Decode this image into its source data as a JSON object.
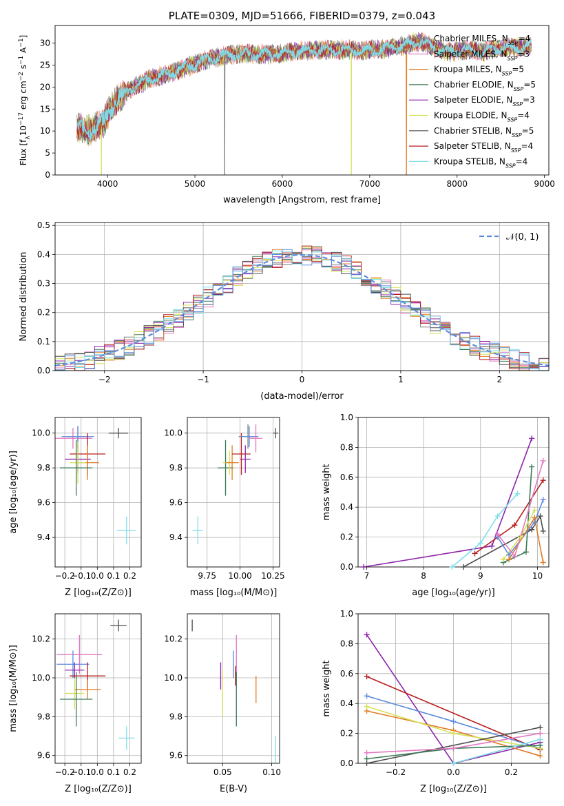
{
  "colors": {
    "chabrier_miles": "#7f7f7f",
    "salpeter_miles": "#e377c2",
    "kroupa_miles": "#e07b24",
    "chabrier_elodie": "#3b7a57",
    "salpeter_elodie": "#8e24aa",
    "kroupa_elodie": "#d4e157",
    "chabrier_stelib": "#4d4d4d",
    "salpeter_stelib": "#b71c1c",
    "kroupa_stelib": "#80deea",
    "blue": "#5b8bdc",
    "normal": "#5b8bdc",
    "grid": "#b0b0b0"
  },
  "chart_data": [
    {
      "id": "spectrum",
      "type": "line",
      "title": "PLATE=0309, MJD=51666, FIBERID=0379, z=0.043",
      "xlabel": "wavelength [Angstrom, rest frame]",
      "ylabel": "Flux [f_λ10^{-17} erg cm^{-2} s^{-1} A^{-1}]",
      "xlim": [
        3400,
        9050
      ],
      "ylim": [
        0,
        34
      ],
      "xticks": [
        4000,
        5000,
        6000,
        7000,
        8000,
        9000
      ],
      "yticks": [
        0,
        5,
        10,
        15,
        20,
        25,
        30
      ],
      "grid": false,
      "legend_position": "right",
      "series": [
        {
          "name": "Chabrier MILES",
          "nssp": "4",
          "color": "chabrier_miles"
        },
        {
          "name": "Salpeter MILES",
          "nssp": "3",
          "color": "salpeter_miles"
        },
        {
          "name": "Kroupa MILES",
          "nssp": "5",
          "color": "kroupa_miles"
        },
        {
          "name": "Chabrier ELODIE",
          "nssp": "5",
          "color": "chabrier_elodie"
        },
        {
          "name": "Salpeter ELODIE",
          "nssp": "3",
          "color": "salpeter_elodie"
        },
        {
          "name": "Kroupa ELODIE",
          "nssp": "4",
          "color": "kroupa_elodie"
        },
        {
          "name": "Chabrier STELIB",
          "nssp": "5",
          "color": "chabrier_stelib"
        },
        {
          "name": "Salpeter STELIB",
          "nssp": "4",
          "color": "salpeter_stelib"
        },
        {
          "name": "Kroupa STELIB",
          "nssp": "4",
          "color": "kroupa_stelib"
        }
      ],
      "continuum": {
        "x": [
          3650,
          3800,
          3950,
          4100,
          4300,
          4500,
          4700,
          4900,
          5100,
          5300,
          5500,
          5700,
          5900,
          6100,
          6300,
          6500,
          6700,
          6900,
          7100,
          7300,
          7500,
          7600,
          7700,
          7900,
          8100,
          8300,
          8500,
          8700,
          8850
        ],
        "y": [
          11,
          10,
          12,
          17,
          20,
          22,
          23,
          24.5,
          26,
          27,
          27.5,
          27.5,
          27.5,
          28,
          28.3,
          28.5,
          28.5,
          28.3,
          28.5,
          29,
          30,
          30.5,
          29,
          28,
          28.5,
          28,
          29,
          29,
          29.5
        ]
      },
      "drops": [
        {
          "wavelength": 3930,
          "series": "kroupa_elodie"
        },
        {
          "wavelength": 5340,
          "series": "chabrier_miles"
        },
        {
          "wavelength": 6790,
          "series": "kroupa_elodie"
        },
        {
          "wavelength": 7420,
          "series": "kroupa_miles"
        }
      ]
    },
    {
      "id": "residuals",
      "type": "histogram",
      "xlabel": "(data-model)/error",
      "ylabel": "Normed distribution",
      "xlim": [
        -2.5,
        2.5
      ],
      "ylim": [
        0,
        0.51
      ],
      "xticks": [
        -2,
        -1,
        0,
        1,
        2
      ],
      "yticks": [
        0.0,
        0.1,
        0.2,
        0.3,
        0.4,
        0.5
      ],
      "grid": true,
      "legend": [
        "𝒩(0, 1)"
      ],
      "legend_position": "top-right",
      "bin_width": 0.1,
      "bin_start": -2.5
    },
    {
      "id": "age_vs_Z",
      "type": "errorbar",
      "xlabel": "Z [log₁₀(Z/Z⊙)]",
      "ylabel": "age  [log₁₀(age/yr)]",
      "xlim": [
        -0.26,
        0.27
      ],
      "ylim": [
        9.23,
        10.09
      ],
      "xticks": [
        -0.2,
        -0.1,
        0.0,
        0.1,
        0.2
      ],
      "xticklabels": [
        "−0.2",
        "−0.1",
        "0.0",
        "0.1",
        "0.2"
      ],
      "yticks": [
        9.4,
        9.6,
        9.8,
        10.0
      ],
      "grid": true,
      "points": [
        {
          "c": "chabrier_miles",
          "x": -0.12,
          "y": 9.98,
          "xe": 0.07,
          "ye": 0.06
        },
        {
          "c": "salpeter_miles",
          "x": -0.15,
          "y": 9.97,
          "xe": 0.12,
          "ye": 0.06
        },
        {
          "c": "blue",
          "x": -0.12,
          "y": 9.98,
          "xe": 0.1,
          "ye": 0.06
        },
        {
          "c": "salpeter_elodie",
          "x": -0.12,
          "y": 9.85,
          "xe": 0.08,
          "ye": 0.08
        },
        {
          "c": "salpeter_stelib",
          "x": -0.06,
          "y": 9.88,
          "xe": 0.11,
          "ye": 0.12
        },
        {
          "c": "kroupa_miles",
          "x": -0.06,
          "y": 9.83,
          "xe": 0.07,
          "ye": 0.1
        },
        {
          "c": "kroupa_elodie",
          "x": -0.12,
          "y": 9.83,
          "xe": 0.05,
          "ye": 0.12
        },
        {
          "c": "chabrier_elodie",
          "x": -0.13,
          "y": 9.8,
          "xe": 0.1,
          "ye": 0.16
        },
        {
          "c": "chabrier_stelib",
          "x": 0.13,
          "y": 10.0,
          "xe": 0.06,
          "ye": 0.03
        },
        {
          "c": "kroupa_stelib",
          "x": 0.18,
          "y": 9.44,
          "xe": 0.06,
          "ye": 0.08
        }
      ]
    },
    {
      "id": "age_vs_mass",
      "type": "errorbar",
      "xlabel": "mass [log₁₀(M/M⊙)]",
      "xlim": [
        9.6,
        10.3
      ],
      "ylim": [
        9.23,
        10.09
      ],
      "xticks": [
        9.75,
        10.0,
        10.25
      ],
      "xticklabels": [
        "9.75",
        "10.00",
        "10.25"
      ],
      "yticks": [
        9.4,
        9.6,
        9.8,
        10.0
      ],
      "grid": true,
      "points": [
        {
          "c": "kroupa_stelib",
          "x": 9.68,
          "y": 9.44,
          "xe": 0.04,
          "ye": 0.08
        },
        {
          "c": "chabrier_elodie",
          "x": 9.89,
          "y": 9.8,
          "xe": 0.06,
          "ye": 0.16
        },
        {
          "c": "kroupa_elodie",
          "x": 9.92,
          "y": 9.83,
          "xe": 0.05,
          "ye": 0.07
        },
        {
          "c": "kroupa_miles",
          "x": 9.94,
          "y": 9.83,
          "xe": 0.05,
          "ye": 0.1
        },
        {
          "c": "salpeter_elodie",
          "x": 10.04,
          "y": 9.85,
          "xe": 0.04,
          "ye": 0.08
        },
        {
          "c": "salpeter_stelib",
          "x": 10.01,
          "y": 9.88,
          "xe": 0.07,
          "ye": 0.12
        },
        {
          "c": "chabrier_miles",
          "x": 10.06,
          "y": 9.98,
          "xe": 0.07,
          "ye": 0.07
        },
        {
          "c": "blue",
          "x": 10.07,
          "y": 9.98,
          "xe": 0.07,
          "ye": 0.06
        },
        {
          "c": "salpeter_miles",
          "x": 10.12,
          "y": 9.97,
          "xe": 0.05,
          "ye": 0.08
        },
        {
          "c": "chabrier_stelib",
          "x": 10.27,
          "y": 10.0,
          "xe": 0.02,
          "ye": 0.03
        }
      ]
    },
    {
      "id": "weight_vs_age",
      "type": "line",
      "xlabel": "age  [log₁₀(age/yr)]",
      "ylabel": "mass weight",
      "xlim": [
        6.85,
        10.2
      ],
      "ylim": [
        0,
        1.0
      ],
      "xticks": [
        7,
        8,
        9,
        10
      ],
      "yticks": [
        0.0,
        0.2,
        0.4,
        0.6,
        0.8,
        1.0
      ],
      "grid": true,
      "series": [
        {
          "c": "salpeter_elodie",
          "x": [
            6.95,
            9.2,
            9.9
          ],
          "y": [
            0.0,
            0.14,
            0.86
          ]
        },
        {
          "c": "kroupa_stelib",
          "x": [
            8.5,
            9.0,
            9.3,
            9.65
          ],
          "y": [
            0.0,
            0.16,
            0.34,
            0.49
          ]
        },
        {
          "c": "salpeter_stelib",
          "x": [
            8.9,
            9.6,
            10.1
          ],
          "y": [
            0.09,
            0.28,
            0.58
          ]
        },
        {
          "c": "chabrier_elodie",
          "x": [
            9.4,
            9.8,
            9.9
          ],
          "y": [
            0.03,
            0.1,
            0.67
          ]
        },
        {
          "c": "chabrier_stelib",
          "x": [
            8.7,
            9.9,
            10.05,
            10.1
          ],
          "y": [
            0.0,
            0.25,
            0.34,
            0.24
          ]
        },
        {
          "c": "blue",
          "x": [
            9.3,
            9.5,
            9.95,
            10.1
          ],
          "y": [
            0.2,
            0.08,
            0.3,
            0.45
          ]
        },
        {
          "c": "kroupa_miles",
          "x": [
            9.5,
            9.95,
            10.1
          ],
          "y": [
            0.05,
            0.33,
            0.03
          ]
        },
        {
          "c": "kroupa_elodie",
          "x": [
            9.4,
            9.7,
            9.95
          ],
          "y": [
            0.05,
            0.2,
            0.38
          ]
        },
        {
          "c": "salpeter_miles",
          "x": [
            9.3,
            9.6,
            10.1
          ],
          "y": [
            0.22,
            0.07,
            0.71
          ]
        }
      ]
    },
    {
      "id": "mass_vs_Z",
      "type": "errorbar",
      "xlabel": "Z [log₁₀(Z/Z⊙)]",
      "ylabel": "mass [log₁₀(M/M⊙)]",
      "xlim": [
        -0.26,
        0.27
      ],
      "ylim": [
        9.56,
        10.33
      ],
      "xticks": [
        -0.2,
        -0.1,
        0.0,
        0.1,
        0.2
      ],
      "xticklabels": [
        "−0.2",
        "−0.1",
        "0.0",
        "0.1",
        "0.2"
      ],
      "yticks": [
        9.6,
        9.8,
        10.0,
        10.2
      ],
      "grid": true,
      "points": [
        {
          "c": "chabrier_stelib",
          "x": 0.13,
          "y": 10.27,
          "xe": 0.05,
          "ye": 0.03
        },
        {
          "c": "salpeter_miles",
          "x": -0.11,
          "y": 10.12,
          "xe": 0.14,
          "ye": 0.1
        },
        {
          "c": "blue",
          "x": -0.15,
          "y": 10.07,
          "xe": 0.1,
          "ye": 0.07
        },
        {
          "c": "salpeter_elodie",
          "x": -0.14,
          "y": 10.04,
          "xe": 0.06,
          "ye": 0.04
        },
        {
          "c": "salpeter_stelib",
          "x": -0.06,
          "y": 10.01,
          "xe": 0.11,
          "ye": 0.07
        },
        {
          "c": "kroupa_miles",
          "x": -0.06,
          "y": 9.94,
          "xe": 0.08,
          "ye": 0.05
        },
        {
          "c": "kroupa_elodie",
          "x": -0.14,
          "y": 9.92,
          "xe": 0.06,
          "ye": 0.08
        },
        {
          "c": "chabrier_elodie",
          "x": -0.13,
          "y": 9.89,
          "xe": 0.1,
          "ye": 0.14
        },
        {
          "c": "kroupa_stelib",
          "x": 0.18,
          "y": 9.69,
          "xe": 0.05,
          "ye": 0.06
        }
      ]
    },
    {
      "id": "mass_vs_ebv",
      "type": "errorbar",
      "xlabel": "E(B-V)",
      "xlim": [
        0.014,
        0.108
      ],
      "ylim": [
        9.56,
        10.33
      ],
      "xticks": [
        0.05,
        0.1
      ],
      "xticklabels": [
        "0.05",
        "0.10"
      ],
      "yticks": [
        9.6,
        9.8,
        10.0,
        10.2
      ],
      "grid": true,
      "points": [
        {
          "c": "chabrier_stelib",
          "x": 0.019,
          "y": 10.27,
          "xe": 0,
          "ye": 0.03
        },
        {
          "c": "salpeter_miles",
          "x": 0.064,
          "y": 10.12,
          "xe": 0,
          "ye": 0.1
        },
        {
          "c": "blue",
          "x": 0.061,
          "y": 10.07,
          "xe": 0,
          "ye": 0.07
        },
        {
          "c": "salpeter_elodie",
          "x": 0.048,
          "y": 10.01,
          "xe": 0,
          "ye": 0.07
        },
        {
          "c": "salpeter_stelib",
          "x": 0.063,
          "y": 10.01,
          "xe": 0,
          "ye": 0.05
        },
        {
          "c": "kroupa_miles",
          "x": 0.084,
          "y": 9.94,
          "xe": 0,
          "ye": 0.07
        },
        {
          "c": "kroupa_elodie",
          "x": 0.05,
          "y": 9.92,
          "xe": 0,
          "ye": 0.12
        },
        {
          "c": "chabrier_elodie",
          "x": 0.064,
          "y": 9.89,
          "xe": 0,
          "ye": 0.14
        },
        {
          "c": "kroupa_stelib",
          "x": 0.104,
          "y": 9.62,
          "xe": 0,
          "ye": 0.08
        }
      ]
    },
    {
      "id": "weight_vs_Z",
      "type": "line",
      "xlabel": "Z [log₁₀(Z/Z⊙)]",
      "ylabel": "mass weight",
      "xlim": [
        -0.33,
        0.33
      ],
      "ylim": [
        0,
        1.0
      ],
      "xticks": [
        -0.2,
        0.0,
        0.2
      ],
      "xticklabels": [
        "−0.2",
        "0.0",
        "0.2"
      ],
      "yticks": [
        0.0,
        0.2,
        0.4,
        0.6,
        0.8,
        1.0
      ],
      "grid": true,
      "series": [
        {
          "c": "salpeter_elodie",
          "x": [
            -0.3,
            0.0,
            0.3
          ],
          "y": [
            0.86,
            0.0,
            0.14
          ]
        },
        {
          "c": "salpeter_stelib",
          "x": [
            -0.3,
            0.3
          ],
          "y": [
            0.58,
            0.09
          ]
        },
        {
          "c": "blue",
          "x": [
            -0.3,
            0.0,
            0.3
          ],
          "y": [
            0.45,
            0.28,
            0.1
          ]
        },
        {
          "c": "kroupa_miles",
          "x": [
            -0.3,
            0.0,
            0.3
          ],
          "y": [
            0.35,
            0.22,
            0.05
          ]
        },
        {
          "c": "kroupa_elodie",
          "x": [
            -0.3,
            0.0,
            0.3
          ],
          "y": [
            0.38,
            0.2,
            0.1
          ]
        },
        {
          "c": "chabrier_stelib",
          "x": [
            -0.3,
            0.3
          ],
          "y": [
            0.0,
            0.24
          ]
        },
        {
          "c": "chabrier_elodie",
          "x": [
            -0.3,
            0.0,
            0.3
          ],
          "y": [
            0.03,
            0.1,
            0.12
          ]
        },
        {
          "c": "salpeter_miles",
          "x": [
            -0.3,
            0.0,
            0.3
          ],
          "y": [
            0.07,
            0.1,
            0.2
          ]
        },
        {
          "c": "kroupa_stelib",
          "x": [
            0.0,
            0.3
          ],
          "y": [
            0.0,
            0.16
          ]
        }
      ]
    }
  ]
}
